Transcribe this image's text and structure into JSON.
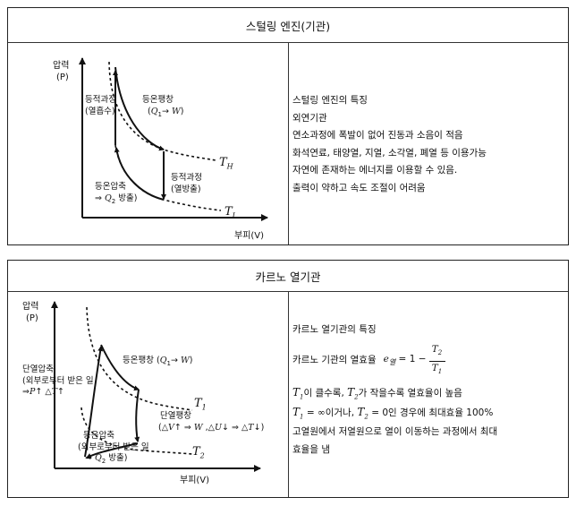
{
  "stirling": {
    "title": "스털링 엔진(기관)",
    "axis_y": "압력",
    "axis_y_unit": "(P)",
    "axis_x": "부피(V)",
    "isochoric_heating": [
      "등적과정",
      "(열흡수)"
    ],
    "isothermal_expansion": [
      "등온팽창"
    ],
    "isochoric_cooling": [
      "등적과정",
      "(열방출)"
    ],
    "isothermal_compression": [
      "등온압축"
    ],
    "TH_sub": "H",
    "TL_sub": "L",
    "features_heading": "스털링 엔진의 특징",
    "features": [
      "외연기관",
      "연소과정에 폭발이 없어 진동과 소음이 적음",
      "화석연료, 태양열, 지열, 소각열, 폐열 등 이용가능",
      "자연에 존재하는 에너지를 이용할 수 있음.",
      "출력이 약하고 속도 조절이 어려움"
    ]
  },
  "carnot": {
    "title": "카르노 열기관",
    "axis_y": "압력",
    "axis_y_unit": "(P)",
    "axis_x": "부피(V)",
    "adiabatic_compression": [
      "단열압축",
      "(외부로부터 받은 일"
    ],
    "isothermal_expansion": "등온팽창",
    "adiabatic_expansion": "단열팽창",
    "isothermal_compression": [
      "등온압축",
      "(외부로부터 받은 일"
    ],
    "features_heading": "카르노 열기관의 특징",
    "efficiency_prefix": "카르노 기관의 열효율",
    "condition_1_text": "이 클수록,",
    "condition_1_text2": "가 작을수록 열효율이 높음",
    "condition_2_text": "= ∞이거나,",
    "condition_2_text2": "= 0인 경우에 최대효율 100%",
    "features_tail": [
      "고열원에서 저열원으로 열이 이동하는 과정에서 최대",
      "효율을 냄"
    ]
  }
}
